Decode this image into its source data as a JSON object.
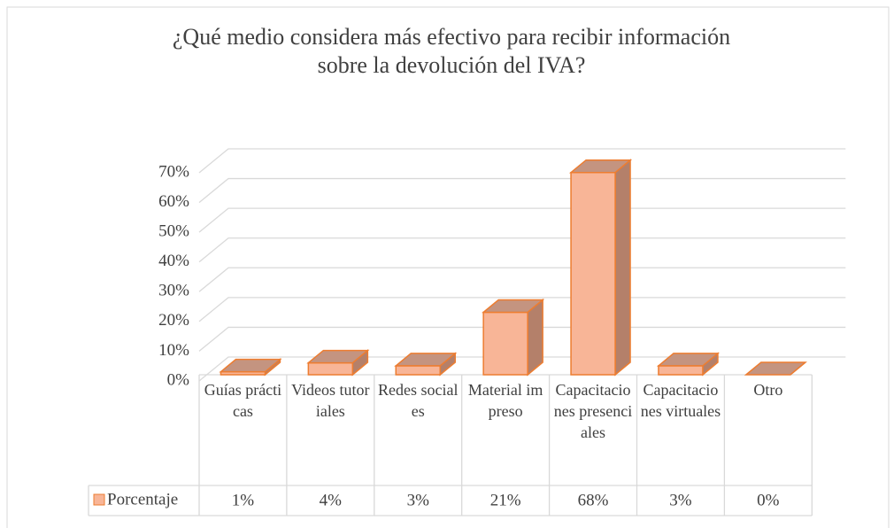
{
  "chart_data": {
    "type": "bar3d",
    "title": "¿Qué medio considera más efectivo para recibir información\nsobre la devolución del IVA?",
    "categories": [
      "Guías prácticas",
      "Videos tutoriales",
      "Redes sociales",
      "Material impreso",
      "Capacitaciones presenciales",
      "Capacitaciones virtuales",
      "Otro"
    ],
    "series": [
      {
        "name": "Porcentaje",
        "color": "#f8b597",
        "values": [
          1,
          4,
          3,
          21,
          68,
          3,
          0
        ],
        "value_labels": [
          "1%",
          "4%",
          "3%",
          "21%",
          "68%",
          "3%",
          "0%"
        ]
      }
    ],
    "ylim": [
      0,
      70
    ],
    "yticks": [
      {
        "value": 0,
        "label": "0%"
      },
      {
        "value": 10,
        "label": "10%"
      },
      {
        "value": 20,
        "label": "20%"
      },
      {
        "value": 30,
        "label": "30%"
      },
      {
        "value": 40,
        "label": "40%"
      },
      {
        "value": 50,
        "label": "50%"
      },
      {
        "value": 60,
        "label": "60%"
      },
      {
        "value": 70,
        "label": "70%"
      }
    ],
    "grid": true
  }
}
